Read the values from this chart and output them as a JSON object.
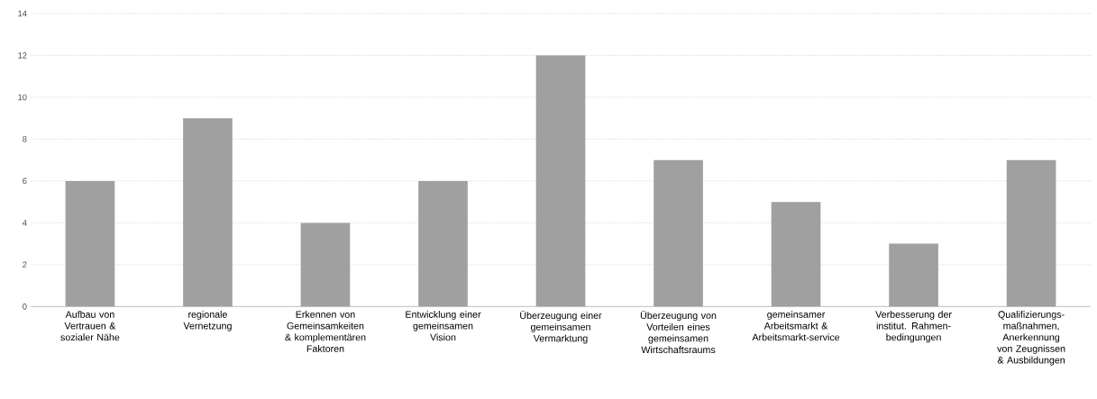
{
  "chart_data": {
    "type": "bar",
    "categories": [
      "Aufbau von Vertrauen & sozialer Nähe",
      "regionale Vernetzung",
      "Erkennen von Gemeinsamkeiten & komplementären Faktoren",
      "Entwicklung einer gemeinsamen Vision",
      "Überzeugung einer gemeinsamen Vermarktung",
      "Überzeugung von Vorteilen eines gemeinsamen Wirtschaftsraums",
      "gemeinsamer Arbeitsmarkt & Arbeitsmarkt-service",
      "Verbesserung der institut. Rahmen-bedingungen",
      "Qualifizierungs-maßnahmen, Anerkennung von Zeugnissen & Ausbildungen"
    ],
    "values": [
      6,
      9,
      4,
      6,
      12,
      7,
      5,
      3,
      7
    ],
    "color": "#a0a0a0",
    "ylim": [
      0,
      14
    ],
    "yticks": [
      0,
      2,
      4,
      6,
      8,
      10,
      12,
      14
    ],
    "grid": "y"
  }
}
